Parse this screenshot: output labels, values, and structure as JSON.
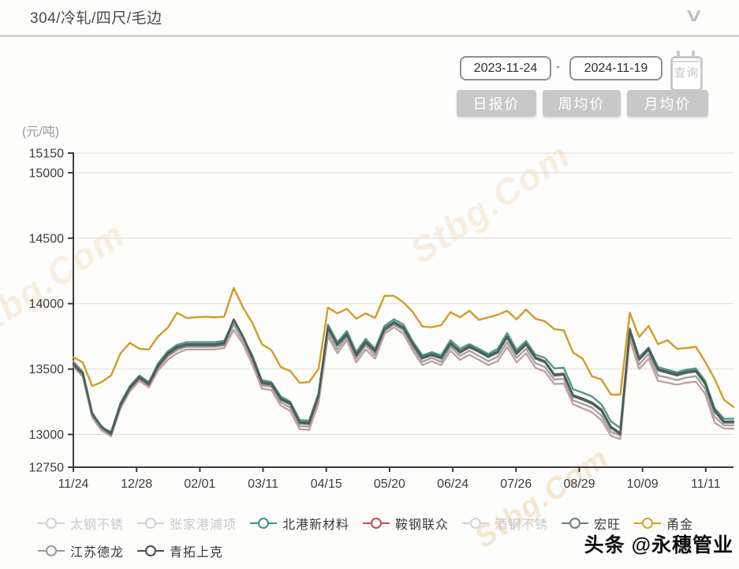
{
  "header": {
    "title": "304/冷轧/四尺/毛边"
  },
  "controls": {
    "date_start": "2023-11-24",
    "date_separator": "-",
    "date_end": "2024-11-19",
    "query_label": "查询",
    "period_buttons": [
      "日报价",
      "周均价",
      "月均价"
    ]
  },
  "chart_data": {
    "type": "line",
    "unit_label": "(元/吨)",
    "ylim": [
      12750,
      15150
    ],
    "y_ticks": [
      12750,
      13000,
      13500,
      14000,
      14500,
      15000,
      15150
    ],
    "x_tick_labels": [
      "11/24",
      "12/28",
      "02/01",
      "03/11",
      "04/15",
      "05/20",
      "06/24",
      "07/26",
      "08/29",
      "10/09",
      "11/11"
    ],
    "x_tick_pos": [
      0,
      0.0958,
      0.1916,
      0.2874,
      0.3832,
      0.479,
      0.5748,
      0.6706,
      0.7664,
      0.8622,
      0.958
    ],
    "grid": true,
    "series": [
      {
        "name": "江苏德龙",
        "color": "#a3a3a3",
        "values": [
          13560,
          13480,
          13170,
          13045,
          12985,
          13215,
          13345,
          13425,
          13375,
          13510,
          13595,
          13645,
          13670,
          13670,
          13670,
          13670,
          13680,
          13840,
          13715,
          13560,
          13375,
          13365,
          13245,
          13205,
          13065,
          13060,
          13265,
          13780,
          13650,
          13745,
          13580,
          13680,
          13605,
          13790,
          13840,
          13795,
          13665,
          13555,
          13585,
          13555,
          13670,
          13600,
          13640,
          13600,
          13560,
          13595,
          13705,
          13585,
          13655,
          13545,
          13515,
          13420,
          13425,
          13260,
          13235,
          13205,
          13145,
          13020,
          12990,
          13765,
          13535,
          13615,
          13450,
          13435,
          13415,
          13435,
          13445,
          13350,
          13135,
          13070,
          13070
        ]
      },
      {
        "name": "鞍钢联众",
        "color": "#c2a0a0",
        "values": [
          13520,
          13440,
          13130,
          13030,
          12990,
          13200,
          13330,
          13410,
          13360,
          13490,
          13570,
          13620,
          13650,
          13650,
          13650,
          13650,
          13660,
          13800,
          13690,
          13530,
          13350,
          13340,
          13220,
          13180,
          13040,
          13035,
          13240,
          13750,
          13620,
          13720,
          13550,
          13650,
          13580,
          13770,
          13820,
          13770,
          13640,
          13530,
          13560,
          13530,
          13640,
          13570,
          13610,
          13570,
          13530,
          13560,
          13670,
          13550,
          13620,
          13510,
          13480,
          13385,
          13390,
          13230,
          13200,
          13170,
          13110,
          12990,
          12965,
          13730,
          13500,
          13580,
          13410,
          13395,
          13380,
          13395,
          13405,
          13310,
          13090,
          13045,
          13045
        ]
      },
      {
        "name": "宏旺",
        "color": "#5d6b68",
        "values": [
          13530,
          13460,
          13150,
          13050,
          13000,
          13220,
          13350,
          13430,
          13380,
          13520,
          13610,
          13660,
          13680,
          13680,
          13680,
          13680,
          13690,
          13870,
          13740,
          13580,
          13390,
          13380,
          13265,
          13230,
          13085,
          13080,
          13290,
          13810,
          13680,
          13760,
          13600,
          13700,
          13630,
          13800,
          13850,
          13810,
          13685,
          13580,
          13605,
          13580,
          13690,
          13625,
          13665,
          13630,
          13590,
          13625,
          13740,
          13615,
          13685,
          13580,
          13550,
          13450,
          13455,
          13290,
          13265,
          13235,
          13180,
          13050,
          13000,
          13790,
          13570,
          13645,
          13490,
          13470,
          13450,
          13470,
          13480,
          13385,
          13175,
          13090,
          13090
        ]
      },
      {
        "name": "北港新材料",
        "color": "#4d9a8a",
        "values": [
          13550,
          13460,
          13150,
          13050,
          13020,
          13240,
          13370,
          13450,
          13400,
          13545,
          13635,
          13685,
          13705,
          13705,
          13705,
          13705,
          13715,
          13870,
          13740,
          13600,
          13415,
          13400,
          13290,
          13250,
          13110,
          13105,
          13315,
          13840,
          13705,
          13790,
          13630,
          13730,
          13655,
          13830,
          13880,
          13840,
          13710,
          13605,
          13630,
          13605,
          13720,
          13655,
          13690,
          13655,
          13615,
          13655,
          13775,
          13645,
          13715,
          13610,
          13585,
          13505,
          13510,
          13345,
          13320,
          13290,
          13230,
          13100,
          13050,
          13810,
          13590,
          13665,
          13515,
          13495,
          13475,
          13495,
          13505,
          13410,
          13200,
          13120,
          13120
        ]
      },
      {
        "name": "青拓上克",
        "color": "#4f5b58",
        "values": [
          13540,
          13470,
          13160,
          13060,
          13010,
          13230,
          13360,
          13440,
          13390,
          13530,
          13620,
          13670,
          13690,
          13690,
          13690,
          13690,
          13700,
          13880,
          13750,
          13590,
          13400,
          13390,
          13275,
          13240,
          13095,
          13090,
          13300,
          13820,
          13690,
          13770,
          13610,
          13710,
          13640,
          13810,
          13860,
          13820,
          13695,
          13590,
          13615,
          13590,
          13700,
          13635,
          13675,
          13640,
          13600,
          13635,
          13750,
          13625,
          13695,
          13590,
          13560,
          13460,
          13465,
          13300,
          13275,
          13245,
          13190,
          13060,
          13010,
          13800,
          13580,
          13655,
          13500,
          13480,
          13460,
          13480,
          13490,
          13395,
          13185,
          13100,
          13100
        ]
      },
      {
        "name": "甬金",
        "color": "#d49a26",
        "values": [
          13590,
          13550,
          13370,
          13400,
          13450,
          13620,
          13700,
          13655,
          13650,
          13750,
          13815,
          13930,
          13890,
          13895,
          13900,
          13895,
          13900,
          14120,
          13970,
          13850,
          13690,
          13645,
          13515,
          13485,
          13395,
          13400,
          13500,
          13970,
          13925,
          13960,
          13885,
          13925,
          13890,
          14060,
          14060,
          14010,
          13935,
          13825,
          13820,
          13835,
          13935,
          13895,
          13945,
          13875,
          13895,
          13915,
          13945,
          13880,
          13955,
          13885,
          13865,
          13805,
          13795,
          13625,
          13580,
          13445,
          13420,
          13305,
          13305,
          13930,
          13745,
          13830,
          13690,
          13720,
          13655,
          13660,
          13670,
          13555,
          13425,
          13265,
          13210
        ]
      }
    ]
  },
  "legend": {
    "rows": [
      [
        {
          "label": "太钢不锈",
          "color": "#d2d2d2",
          "active": false
        },
        {
          "label": "张家港浦项",
          "color": "#d2d2d2",
          "active": false
        },
        {
          "label": "北港新材料",
          "color": "#3d9488",
          "active": true
        },
        {
          "label": "鞍钢联众",
          "color": "#c0504a",
          "active": true
        },
        {
          "label": "酒钢不锈",
          "color": "#d2d2d2",
          "active": false
        },
        {
          "label": "宏旺",
          "color": "#6b7f7b",
          "active": true
        },
        {
          "label": "甬金",
          "color": "#d4a02a",
          "active": true
        }
      ],
      [
        {
          "label": "江苏德龙",
          "color": "#9a9a9a",
          "active": true
        },
        {
          "label": "青拓上克",
          "color": "#4a4a4a",
          "active": true
        }
      ]
    ]
  },
  "watermarks": {
    "site": "Stbg.Com",
    "credit": "头条 @永穗管业"
  },
  "colors": {
    "axis": "#3c3c3c",
    "grid": "#dddddd",
    "tick_text": "#3c3c3c"
  }
}
